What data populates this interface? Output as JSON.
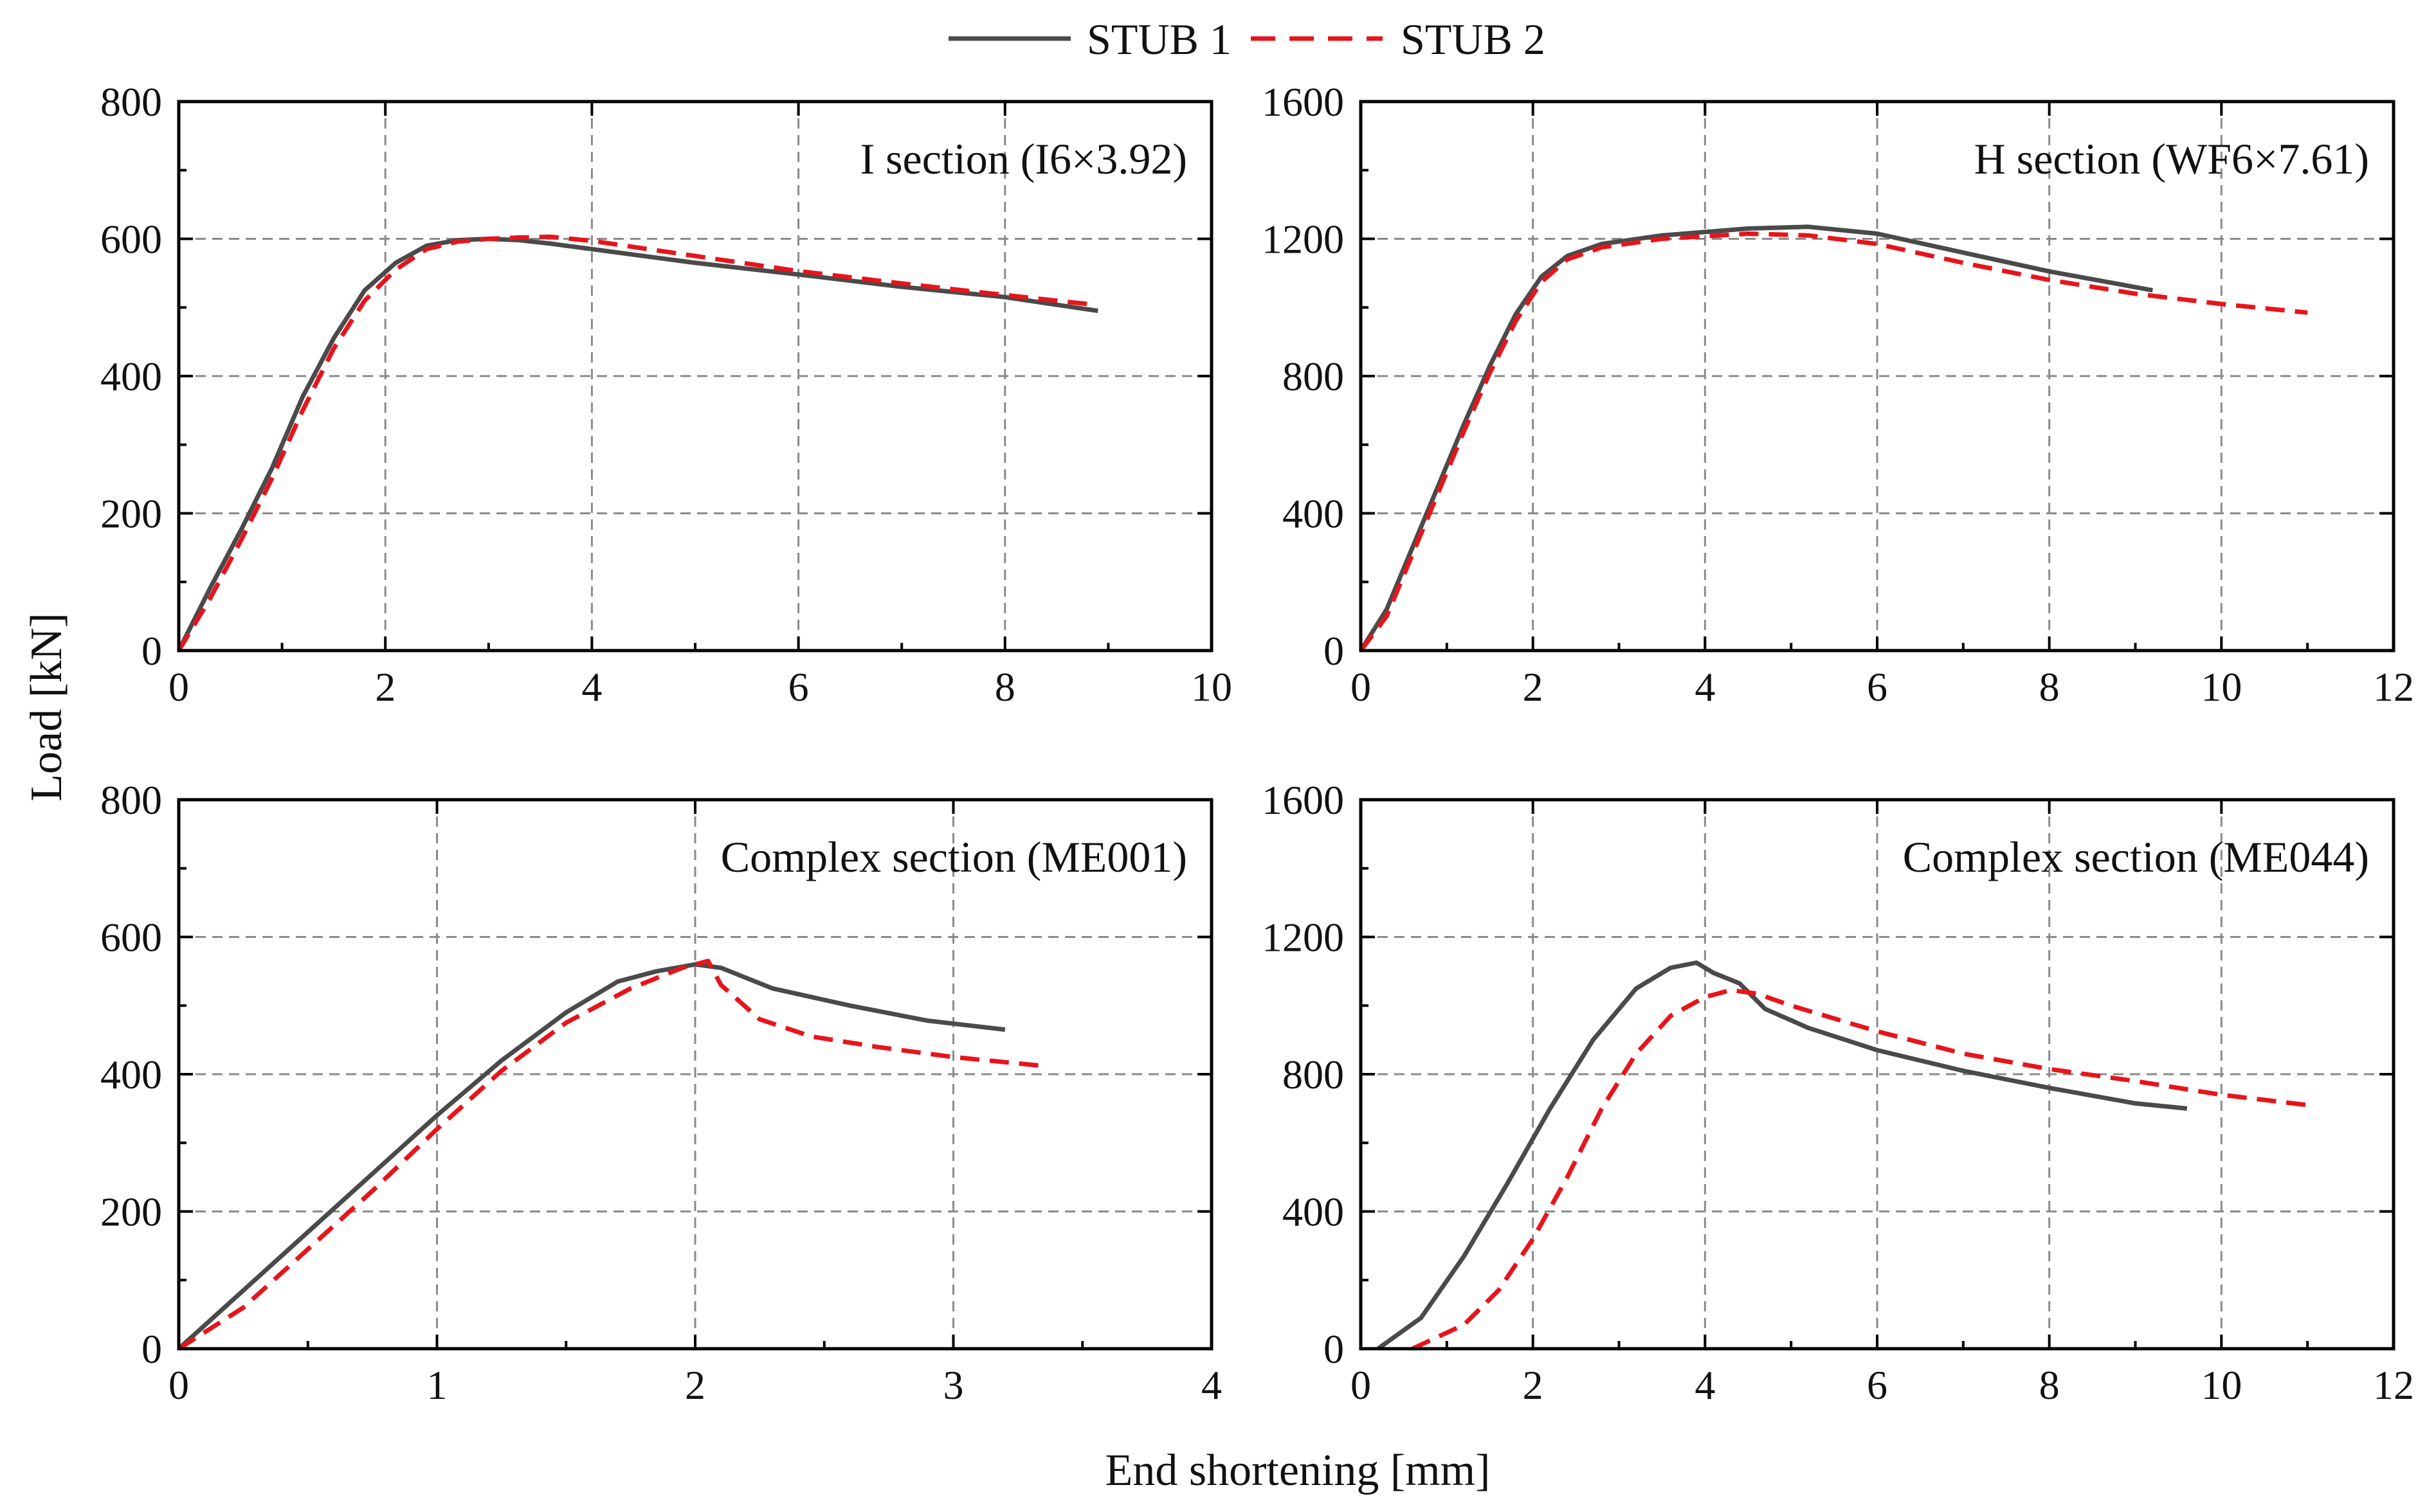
{
  "figure": {
    "xlabel": "End shortening [mm]",
    "ylabel": "Load [kN]",
    "legend": {
      "placement": "top-center",
      "entries": [
        {
          "name": "STUB 1",
          "color": "#4a4a4a",
          "style": "solid"
        },
        {
          "name": "STUB 2",
          "color": "#e8141b",
          "style": "dashed"
        }
      ]
    }
  },
  "chart_data": [
    {
      "type": "line",
      "title": "I section (I6×3.92)",
      "xlabel": "End shortening [mm]",
      "ylabel": "Load [kN]",
      "xlim": [
        0,
        10
      ],
      "ylim": [
        0,
        800
      ],
      "xticks": [
        "0",
        "2",
        "4",
        "6",
        "8",
        "10"
      ],
      "yticks": [
        "0",
        "200",
        "400",
        "600",
        "800"
      ],
      "grid": true,
      "series": [
        {
          "name": "STUB 1",
          "style": "solid",
          "x": [
            0,
            0.3,
            0.6,
            0.9,
            1.2,
            1.5,
            1.8,
            2.1,
            2.4,
            2.7,
            3.0,
            3.3,
            3.6,
            4.0,
            5.0,
            6.0,
            7.0,
            8.0,
            8.9
          ],
          "y": [
            0,
            90,
            175,
            265,
            370,
            455,
            525,
            565,
            590,
            598,
            600,
            598,
            593,
            585,
            565,
            548,
            530,
            515,
            495
          ]
        },
        {
          "name": "STUB 2",
          "style": "dashed",
          "x": [
            0,
            0.3,
            0.6,
            0.9,
            1.2,
            1.5,
            1.8,
            2.1,
            2.4,
            2.7,
            3.0,
            3.3,
            3.6,
            4.0,
            5.0,
            6.0,
            7.0,
            8.0,
            8.8
          ],
          "y": [
            0,
            75,
            160,
            250,
            350,
            440,
            510,
            555,
            585,
            596,
            600,
            602,
            603,
            597,
            575,
            553,
            535,
            518,
            505
          ]
        }
      ]
    },
    {
      "type": "line",
      "title": "H section (WF6×7.61)",
      "xlabel": "End shortening [mm]",
      "ylabel": "Load [kN]",
      "xlim": [
        0,
        12
      ],
      "ylim": [
        0,
        1600
      ],
      "xticks": [
        "0",
        "2",
        "4",
        "6",
        "8",
        "10",
        "12"
      ],
      "yticks": [
        "0",
        "400",
        "800",
        "1200",
        "1600"
      ],
      "grid": true,
      "series": [
        {
          "name": "STUB 1",
          "style": "solid",
          "x": [
            0,
            0.3,
            0.6,
            0.9,
            1.2,
            1.5,
            1.8,
            2.1,
            2.4,
            2.8,
            3.5,
            4.5,
            5.2,
            6.0,
            7.0,
            8.0,
            9.2
          ],
          "y": [
            0,
            120,
            300,
            480,
            660,
            830,
            980,
            1090,
            1150,
            1185,
            1210,
            1230,
            1235,
            1215,
            1160,
            1105,
            1050
          ]
        },
        {
          "name": "STUB 2",
          "style": "dashed",
          "x": [
            0,
            0.3,
            0.6,
            0.9,
            1.2,
            1.5,
            1.8,
            2.1,
            2.4,
            2.8,
            3.5,
            4.5,
            5.2,
            6.0,
            7.0,
            8.0,
            9.0,
            10.0,
            11.0
          ],
          "y": [
            0,
            100,
            280,
            460,
            640,
            810,
            960,
            1075,
            1140,
            1175,
            1200,
            1215,
            1210,
            1185,
            1130,
            1080,
            1040,
            1010,
            985
          ]
        }
      ]
    },
    {
      "type": "line",
      "title": "Complex section (ME001)",
      "xlabel": "End shortening [mm]",
      "ylabel": "Load [kN]",
      "xlim": [
        0,
        4
      ],
      "ylim": [
        0,
        800
      ],
      "xticks": [
        "0",
        "1",
        "2",
        "3",
        "4"
      ],
      "yticks": [
        "0",
        "200",
        "400",
        "600",
        "800"
      ],
      "grid": true,
      "series": [
        {
          "name": "STUB 1",
          "style": "solid",
          "x": [
            0,
            0.25,
            0.5,
            0.75,
            1.0,
            1.25,
            1.5,
            1.7,
            1.85,
            2.0,
            2.1,
            2.3,
            2.6,
            2.9,
            3.2
          ],
          "y": [
            0,
            85,
            170,
            255,
            340,
            420,
            490,
            535,
            550,
            560,
            555,
            525,
            500,
            478,
            465
          ]
        },
        {
          "name": "STUB 2",
          "style": "dashed",
          "x": [
            0,
            0.25,
            0.5,
            0.75,
            1.0,
            1.25,
            1.5,
            1.75,
            1.95,
            2.05,
            2.1,
            2.25,
            2.45,
            2.7,
            3.0,
            3.35
          ],
          "y": [
            0,
            60,
            145,
            230,
            320,
            405,
            475,
            525,
            555,
            565,
            530,
            480,
            455,
            440,
            425,
            412
          ]
        }
      ]
    },
    {
      "type": "line",
      "title": "Complex section (ME044)",
      "xlabel": "End shortening [mm]",
      "ylabel": "Load [kN]",
      "xlim": [
        0,
        12
      ],
      "ylim": [
        0,
        1600
      ],
      "xticks": [
        "0",
        "2",
        "4",
        "6",
        "8",
        "10",
        "12"
      ],
      "yticks": [
        "0",
        "400",
        "800",
        "1200",
        "1600"
      ],
      "grid": true,
      "series": [
        {
          "name": "STUB 1",
          "style": "solid",
          "x": [
            0.2,
            0.7,
            1.2,
            1.7,
            2.2,
            2.7,
            3.2,
            3.6,
            3.9,
            4.1,
            4.4,
            4.7,
            5.2,
            6.0,
            7.0,
            8.0,
            9.0,
            9.6
          ],
          "y": [
            0,
            90,
            270,
            480,
            700,
            900,
            1050,
            1110,
            1125,
            1095,
            1065,
            990,
            935,
            870,
            810,
            760,
            715,
            700
          ]
        },
        {
          "name": "STUB 2",
          "style": "dashed",
          "x": [
            0.6,
            1.2,
            1.6,
            2.0,
            2.4,
            2.8,
            3.2,
            3.6,
            4.0,
            4.3,
            4.6,
            5.0,
            6.0,
            7.0,
            8.0,
            9.0,
            10.0,
            11.0
          ],
          "y": [
            0,
            70,
            170,
            320,
            500,
            700,
            860,
            970,
            1025,
            1045,
            1035,
            1000,
            925,
            860,
            815,
            780,
            740,
            710
          ]
        }
      ]
    }
  ]
}
